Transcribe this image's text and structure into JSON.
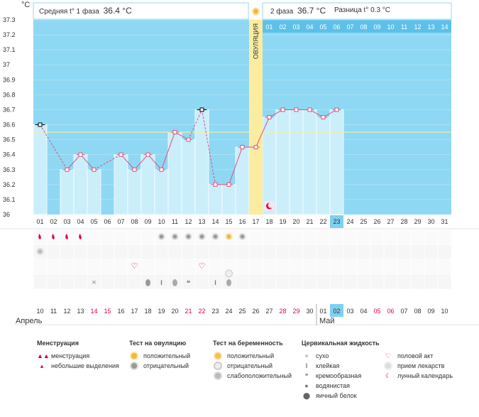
{
  "header": {
    "unit_label": "°C",
    "phase1_label": "Средняя t° 1 фаза",
    "phase1_value": "36.4 °C",
    "phase2_label": "2 фаза",
    "phase2_value": "36.7 °C",
    "diff_label": "Разница t°",
    "diff_value": "0.3 °C"
  },
  "ovulation_label": "ОВУЛЯЦИЯ",
  "month_labels": [
    "Апрель",
    "Май"
  ],
  "chart_data": {
    "type": "line",
    "ylim": [
      36,
      37.3
    ],
    "y_ticks": [
      "37.3",
      "37.2",
      "37.1",
      "37",
      "36.9",
      "36.8",
      "36.7",
      "36.6",
      "36.5",
      "36.4",
      "36.3",
      "36.2",
      "36.1",
      "36"
    ],
    "cycle_days": [
      "01",
      "02",
      "03",
      "04",
      "05",
      "06",
      "07",
      "08",
      "09",
      "10",
      "11",
      "12",
      "13",
      "14",
      "15",
      "16",
      "17",
      "18",
      "19",
      "20",
      "21",
      "22",
      "23",
      "24",
      "25",
      "26",
      "27",
      "28",
      "29",
      "30",
      "31"
    ],
    "dates": [
      "10",
      "11",
      "12",
      "13",
      "14",
      "15",
      "16",
      "17",
      "18",
      "19",
      "20",
      "21",
      "22",
      "23",
      "24",
      "25",
      "26",
      "27",
      "28",
      "29",
      "30",
      "01",
      "02",
      "03",
      "04",
      "05",
      "06",
      "07",
      "08",
      "09",
      "10"
    ],
    "weekend_dates_idx": [
      4,
      5,
      11,
      12,
      18,
      19,
      25,
      26
    ],
    "highlight_cycle_day": "23",
    "highlight_date_idx": 22,
    "temperatures": [
      36.6,
      null,
      36.3,
      36.4,
      36.3,
      null,
      36.4,
      36.3,
      36.4,
      36.3,
      36.55,
      36.5,
      36.7,
      36.2,
      36.2,
      36.45,
      36.45,
      36.65,
      36.7,
      36.7,
      36.7,
      36.65,
      36.7
    ],
    "excluded_days": [
      1,
      13
    ],
    "ovulation_day": 17,
    "coverline": 36.55,
    "phase2_days": [
      "01",
      "02",
      "03",
      "04",
      "05",
      "06",
      "07",
      "08",
      "09",
      "10",
      "11",
      "12",
      "13",
      "14"
    ]
  },
  "legend": {
    "menstruation": {
      "title": "Менструация",
      "items": [
        "менструация",
        "небольшие выделения"
      ]
    },
    "ovulation_test": {
      "title": "Тест на овуляцию",
      "items": [
        "положительный",
        "отрицательный"
      ]
    },
    "pregnancy_test": {
      "title": "Тест на беременность",
      "items": [
        "положительный",
        "отрицательный",
        "слабоположительный"
      ]
    },
    "cervical": {
      "title": "Цервикальная жидкость",
      "items": [
        "сухо",
        "клейкая",
        "кремообразная",
        "водянистая",
        "яичный белок"
      ]
    },
    "other": {
      "items": [
        "половой акт",
        "прием лекарств",
        "лунный календарь"
      ]
    }
  },
  "colors": {
    "plot_bg": "#8fd8f4",
    "bar": "#cbeefb",
    "bar_border": "#ffffff",
    "line": "#e04f7c",
    "ovulation": "#fbeca0",
    "highlight": "#7fd0f0",
    "coverline": "#f6f0a0",
    "weekend": "#e0004a"
  }
}
